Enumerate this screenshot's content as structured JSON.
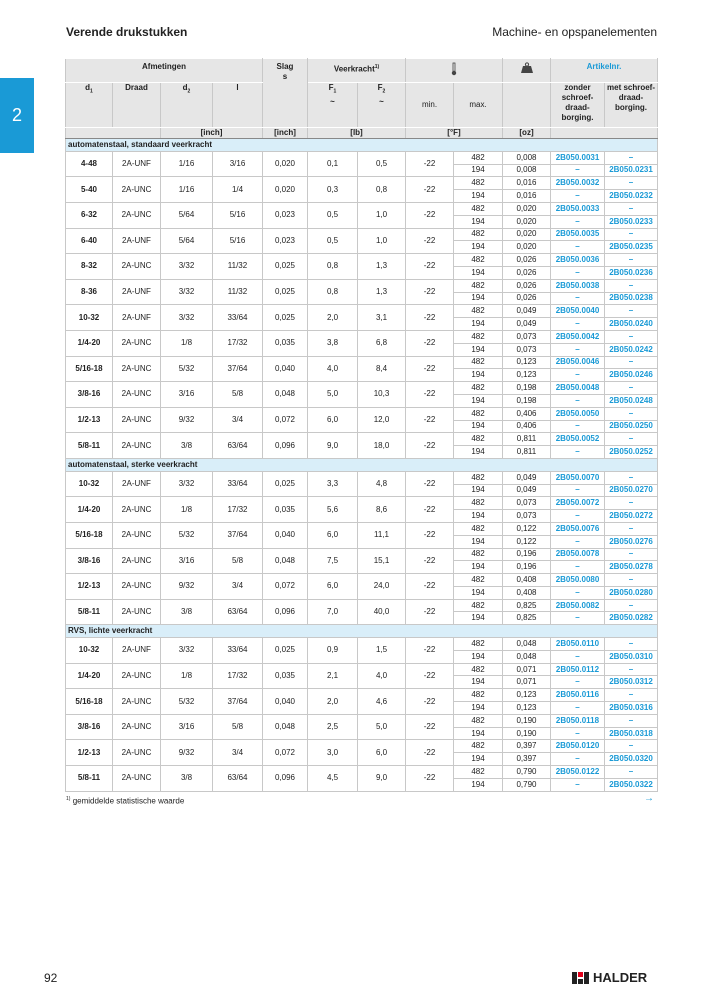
{
  "header": {
    "title": "Verende drukstukken",
    "section": "Machine- en opspanelementen",
    "tab": "2"
  },
  "table": {
    "head": {
      "afmetingen": "Afmetingen",
      "slag": "Slag",
      "slag_sym": "s",
      "veerkracht": "Veerkracht",
      "note_mark": "1)",
      "artikelnr": "Artikelnr.",
      "d1": {
        "base": "d",
        "sub": "1"
      },
      "draad": "Draad",
      "d2": {
        "base": "d",
        "sub": "2"
      },
      "l": "l",
      "f1": {
        "base": "F",
        "sub": "1",
        "sym": "~"
      },
      "f2": {
        "base": "F",
        "sub": "2",
        "sym": "~"
      },
      "min": "min.",
      "max": "max.",
      "zonder": [
        "zonder",
        "schroef-",
        "draad-",
        "borging."
      ],
      "met": [
        "met schroef-",
        "draad-",
        "borging."
      ],
      "units": {
        "inch1": "[inch]",
        "inch2": "[inch]",
        "lb": "[lb]",
        "f": "[°F]",
        "oz": "[oz]"
      }
    },
    "sections": [
      {
        "label": "automatenstaal, standaard veerkracht",
        "rows": [
          {
            "cells": [
              "4-48",
              "2A-UNF",
              "1/16",
              "3/16",
              "0,020",
              "0,1",
              "0,5",
              "-22"
            ],
            "sub": [
              [
                "482",
                "0,008",
                "2B050.0031",
                "–"
              ],
              [
                "194",
                "0,008",
                "–",
                "2B050.0231"
              ]
            ]
          },
          {
            "cells": [
              "5-40",
              "2A-UNC",
              "1/16",
              "1/4",
              "0,020",
              "0,3",
              "0,8",
              "-22"
            ],
            "sub": [
              [
                "482",
                "0,016",
                "2B050.0032",
                "–"
              ],
              [
                "194",
                "0,016",
                "–",
                "2B050.0232"
              ]
            ]
          },
          {
            "cells": [
              "6-32",
              "2A-UNC",
              "5/64",
              "5/16",
              "0,023",
              "0,5",
              "1,0",
              "-22"
            ],
            "sub": [
              [
                "482",
                "0,020",
                "2B050.0033",
                "–"
              ],
              [
                "194",
                "0,020",
                "–",
                "2B050.0233"
              ]
            ]
          },
          {
            "cells": [
              "6-40",
              "2A-UNF",
              "5/64",
              "5/16",
              "0,023",
              "0,5",
              "1,0",
              "-22"
            ],
            "sub": [
              [
                "482",
                "0,020",
                "2B050.0035",
                "–"
              ],
              [
                "194",
                "0,020",
                "–",
                "2B050.0235"
              ]
            ]
          },
          {
            "cells": [
              "8-32",
              "2A-UNC",
              "3/32",
              "11/32",
              "0,025",
              "0,8",
              "1,3",
              "-22"
            ],
            "sub": [
              [
                "482",
                "0,026",
                "2B050.0036",
                "–"
              ],
              [
                "194",
                "0,026",
                "–",
                "2B050.0236"
              ]
            ]
          },
          {
            "cells": [
              "8-36",
              "2A-UNF",
              "3/32",
              "11/32",
              "0,025",
              "0,8",
              "1,3",
              "-22"
            ],
            "sub": [
              [
                "482",
                "0,026",
                "2B050.0038",
                "–"
              ],
              [
                "194",
                "0,026",
                "–",
                "2B050.0238"
              ]
            ]
          },
          {
            "cells": [
              "10-32",
              "2A-UNF",
              "3/32",
              "33/64",
              "0,025",
              "2,0",
              "3,1",
              "-22"
            ],
            "sub": [
              [
                "482",
                "0,049",
                "2B050.0040",
                "–"
              ],
              [
                "194",
                "0,049",
                "–",
                "2B050.0240"
              ]
            ]
          },
          {
            "cells": [
              "1/4-20",
              "2A-UNC",
              "1/8",
              "17/32",
              "0,035",
              "3,8",
              "6,8",
              "-22"
            ],
            "sub": [
              [
                "482",
                "0,073",
                "2B050.0042",
                "–"
              ],
              [
                "194",
                "0,073",
                "–",
                "2B050.0242"
              ]
            ]
          },
          {
            "cells": [
              "5/16-18",
              "2A-UNC",
              "5/32",
              "37/64",
              "0,040",
              "4,0",
              "8,4",
              "-22"
            ],
            "sub": [
              [
                "482",
                "0,123",
                "2B050.0046",
                "–"
              ],
              [
                "194",
                "0,123",
                "–",
                "2B050.0246"
              ]
            ]
          },
          {
            "cells": [
              "3/8-16",
              "2A-UNC",
              "3/16",
              "5/8",
              "0,048",
              "5,0",
              "10,3",
              "-22"
            ],
            "sub": [
              [
                "482",
                "0,198",
                "2B050.0048",
                "–"
              ],
              [
                "194",
                "0,198",
                "–",
                "2B050.0248"
              ]
            ]
          },
          {
            "cells": [
              "1/2-13",
              "2A-UNC",
              "9/32",
              "3/4",
              "0,072",
              "6,0",
              "12,0",
              "-22"
            ],
            "sub": [
              [
                "482",
                "0,406",
                "2B050.0050",
                "–"
              ],
              [
                "194",
                "0,406",
                "–",
                "2B050.0250"
              ]
            ]
          },
          {
            "cells": [
              "5/8-11",
              "2A-UNC",
              "3/8",
              "63/64",
              "0,096",
              "9,0",
              "18,0",
              "-22"
            ],
            "sub": [
              [
                "482",
                "0,811",
                "2B050.0052",
                "–"
              ],
              [
                "194",
                "0,811",
                "–",
                "2B050.0252"
              ]
            ]
          }
        ]
      },
      {
        "label": "automatenstaal, sterke veerkracht",
        "rows": [
          {
            "cells": [
              "10-32",
              "2A-UNF",
              "3/32",
              "33/64",
              "0,025",
              "3,3",
              "4,8",
              "-22"
            ],
            "sub": [
              [
                "482",
                "0,049",
                "2B050.0070",
                "–"
              ],
              [
                "194",
                "0,049",
                "–",
                "2B050.0270"
              ]
            ]
          },
          {
            "cells": [
              "1/4-20",
              "2A-UNC",
              "1/8",
              "17/32",
              "0,035",
              "5,6",
              "8,6",
              "-22"
            ],
            "sub": [
              [
                "482",
                "0,073",
                "2B050.0072",
                "–"
              ],
              [
                "194",
                "0,073",
                "–",
                "2B050.0272"
              ]
            ]
          },
          {
            "cells": [
              "5/16-18",
              "2A-UNC",
              "5/32",
              "37/64",
              "0,040",
              "6,0",
              "11,1",
              "-22"
            ],
            "sub": [
              [
                "482",
                "0,122",
                "2B050.0076",
                "–"
              ],
              [
                "194",
                "0,122",
                "–",
                "2B050.0276"
              ]
            ]
          },
          {
            "cells": [
              "3/8-16",
              "2A-UNC",
              "3/16",
              "5/8",
              "0,048",
              "7,5",
              "15,1",
              "-22"
            ],
            "sub": [
              [
                "482",
                "0,196",
                "2B050.0078",
                "–"
              ],
              [
                "194",
                "0,196",
                "–",
                "2B050.0278"
              ]
            ]
          },
          {
            "cells": [
              "1/2-13",
              "2A-UNC",
              "9/32",
              "3/4",
              "0,072",
              "6,0",
              "24,0",
              "-22"
            ],
            "sub": [
              [
                "482",
                "0,408",
                "2B050.0080",
                "–"
              ],
              [
                "194",
                "0,408",
                "–",
                "2B050.0280"
              ]
            ]
          },
          {
            "cells": [
              "5/8-11",
              "2A-UNC",
              "3/8",
              "63/64",
              "0,096",
              "7,0",
              "40,0",
              "-22"
            ],
            "sub": [
              [
                "482",
                "0,825",
                "2B050.0082",
                "–"
              ],
              [
                "194",
                "0,825",
                "–",
                "2B050.0282"
              ]
            ]
          }
        ]
      },
      {
        "label": "RVS, lichte veerkracht",
        "rows": [
          {
            "cells": [
              "10-32",
              "2A-UNF",
              "3/32",
              "33/64",
              "0,025",
              "0,9",
              "1,5",
              "-22"
            ],
            "sub": [
              [
                "482",
                "0,048",
                "2B050.0110",
                "–"
              ],
              [
                "194",
                "0,048",
                "–",
                "2B050.0310"
              ]
            ]
          },
          {
            "cells": [
              "1/4-20",
              "2A-UNC",
              "1/8",
              "17/32",
              "0,035",
              "2,1",
              "4,0",
              "-22"
            ],
            "sub": [
              [
                "482",
                "0,071",
                "2B050.0112",
                "–"
              ],
              [
                "194",
                "0,071",
                "–",
                "2B050.0312"
              ]
            ]
          },
          {
            "cells": [
              "5/16-18",
              "2A-UNC",
              "5/32",
              "37/64",
              "0,040",
              "2,0",
              "4,6",
              "-22"
            ],
            "sub": [
              [
                "482",
                "0,123",
                "2B050.0116",
                "–"
              ],
              [
                "194",
                "0,123",
                "–",
                "2B050.0316"
              ]
            ]
          },
          {
            "cells": [
              "3/8-16",
              "2A-UNC",
              "3/16",
              "5/8",
              "0,048",
              "2,5",
              "5,0",
              "-22"
            ],
            "sub": [
              [
                "482",
                "0,190",
                "2B050.0118",
                "–"
              ],
              [
                "194",
                "0,190",
                "–",
                "2B050.0318"
              ]
            ]
          },
          {
            "cells": [
              "1/2-13",
              "2A-UNC",
              "9/32",
              "3/4",
              "0,072",
              "3,0",
              "6,0",
              "-22"
            ],
            "sub": [
              [
                "482",
                "0,397",
                "2B050.0120",
                "–"
              ],
              [
                "194",
                "0,397",
                "–",
                "2B050.0320"
              ]
            ]
          },
          {
            "cells": [
              "5/8-11",
              "2A-UNC",
              "3/8",
              "63/64",
              "0,096",
              "4,5",
              "9,0",
              "-22"
            ],
            "sub": [
              [
                "482",
                "0,790",
                "2B050.0122",
                "–"
              ],
              [
                "194",
                "0,790",
                "–",
                "2B050.0322"
              ]
            ]
          }
        ]
      }
    ]
  },
  "footnote": {
    "mark": "1)",
    "text": "gemiddelde statistische waarde"
  },
  "arrow": "→",
  "page_number": "92",
  "logo": "HALDER"
}
